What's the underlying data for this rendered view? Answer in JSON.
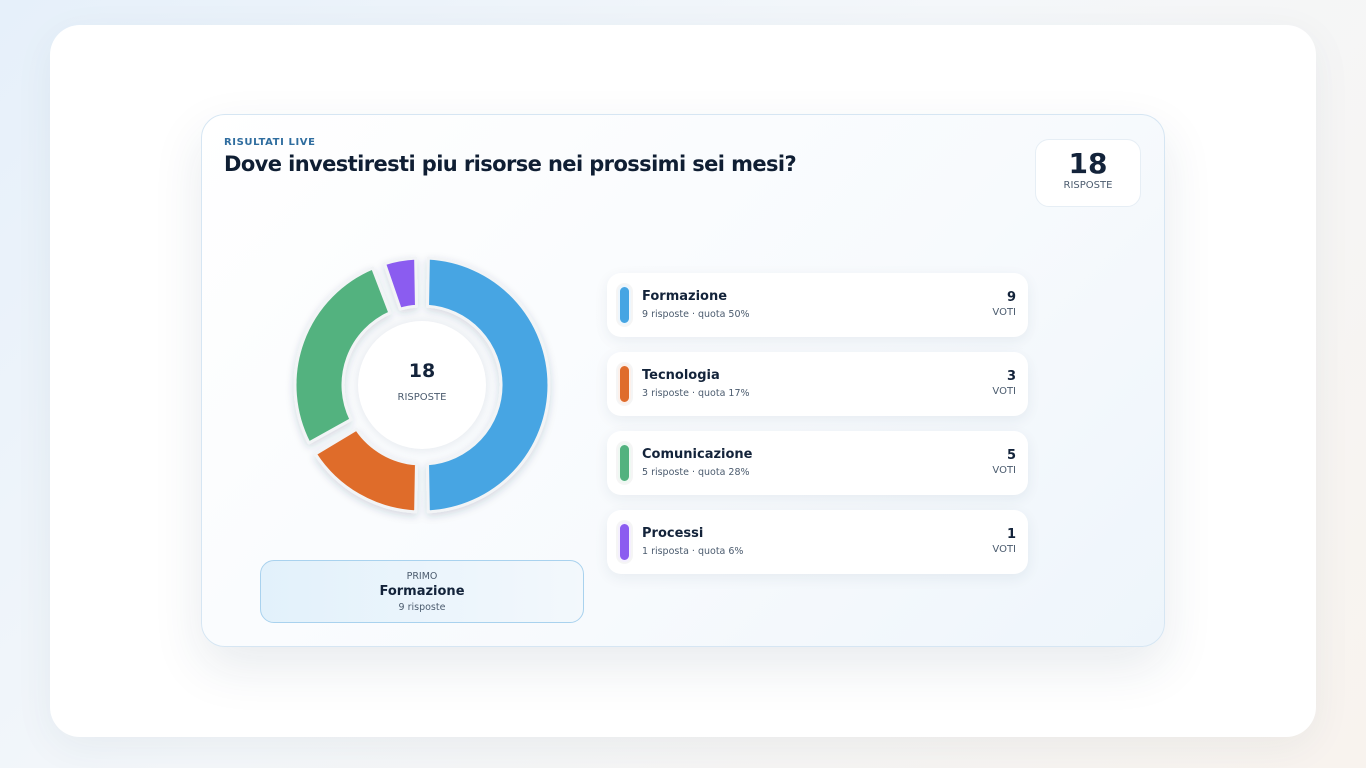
{
  "header": {
    "eyebrow": "RISULTATI LIVE",
    "title": "Dove investiresti piu risorse nei prossimi sei mesi?"
  },
  "total": {
    "value": 18,
    "label": "RISPOSTE"
  },
  "chart_data": {
    "type": "donut",
    "categories": [
      "Formazione",
      "Tecnologia",
      "Comunicazione",
      "Processi"
    ],
    "values": [
      9,
      3,
      5,
      1
    ],
    "colors": [
      "#46a5e3",
      "#df6c2c",
      "#52b27f",
      "#8b5cf0"
    ]
  },
  "items": [
    {
      "detail": "9 risposte · quota 50%"
    },
    {
      "detail": "3 risposte · quota 17%"
    },
    {
      "detail": "5 risposte · quota 28%"
    },
    {
      "detail": "1 risposta · quota 6%"
    }
  ],
  "votes_unit": "VOTI",
  "leader": {
    "label": "PRIMO",
    "detail": "9 risposte"
  }
}
